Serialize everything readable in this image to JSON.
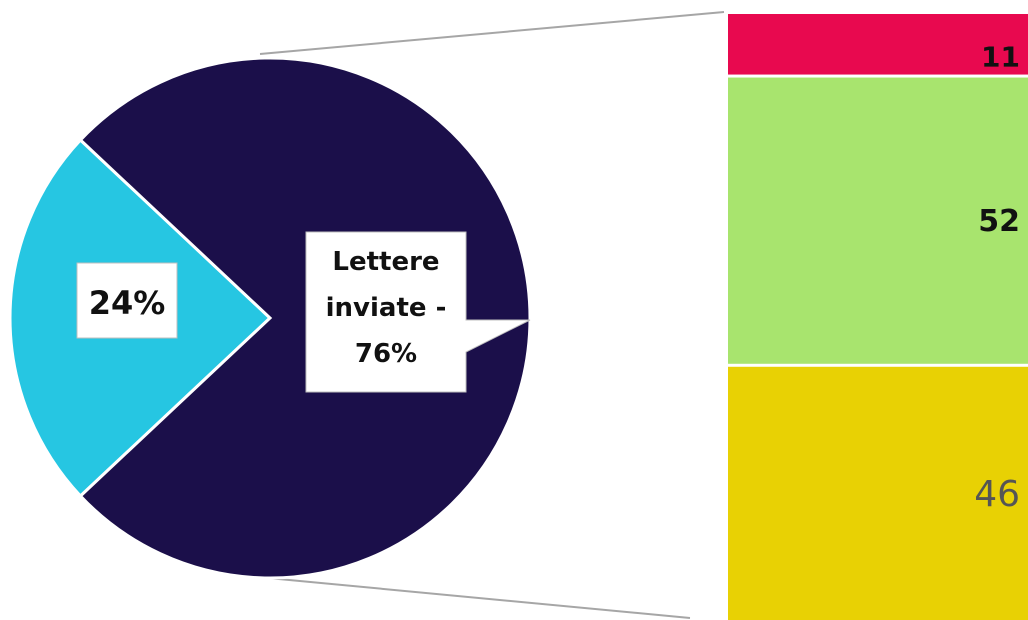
{
  "chart_data": {
    "type": "bar-of-pie",
    "pie": {
      "slices": [
        {
          "label": "",
          "display": "24%",
          "percent": 24,
          "color": "#26C6E2"
        },
        {
          "label": "Lettere inviate",
          "display": "Lettere inviate - 76%",
          "percent": 76,
          "color": "#1B0F4A"
        }
      ]
    },
    "bar": {
      "segments": [
        {
          "value": 11,
          "display": "11",
          "color": "#E8094F",
          "label_color": "#111111"
        },
        {
          "value": 52,
          "display": "52",
          "color": "#A8E46E",
          "label_color": "#111111"
        },
        {
          "value": 46,
          "display": "46",
          "color": "#E8D104",
          "label_color": "#555555"
        }
      ]
    },
    "connector_color": "#A6A6A6"
  }
}
